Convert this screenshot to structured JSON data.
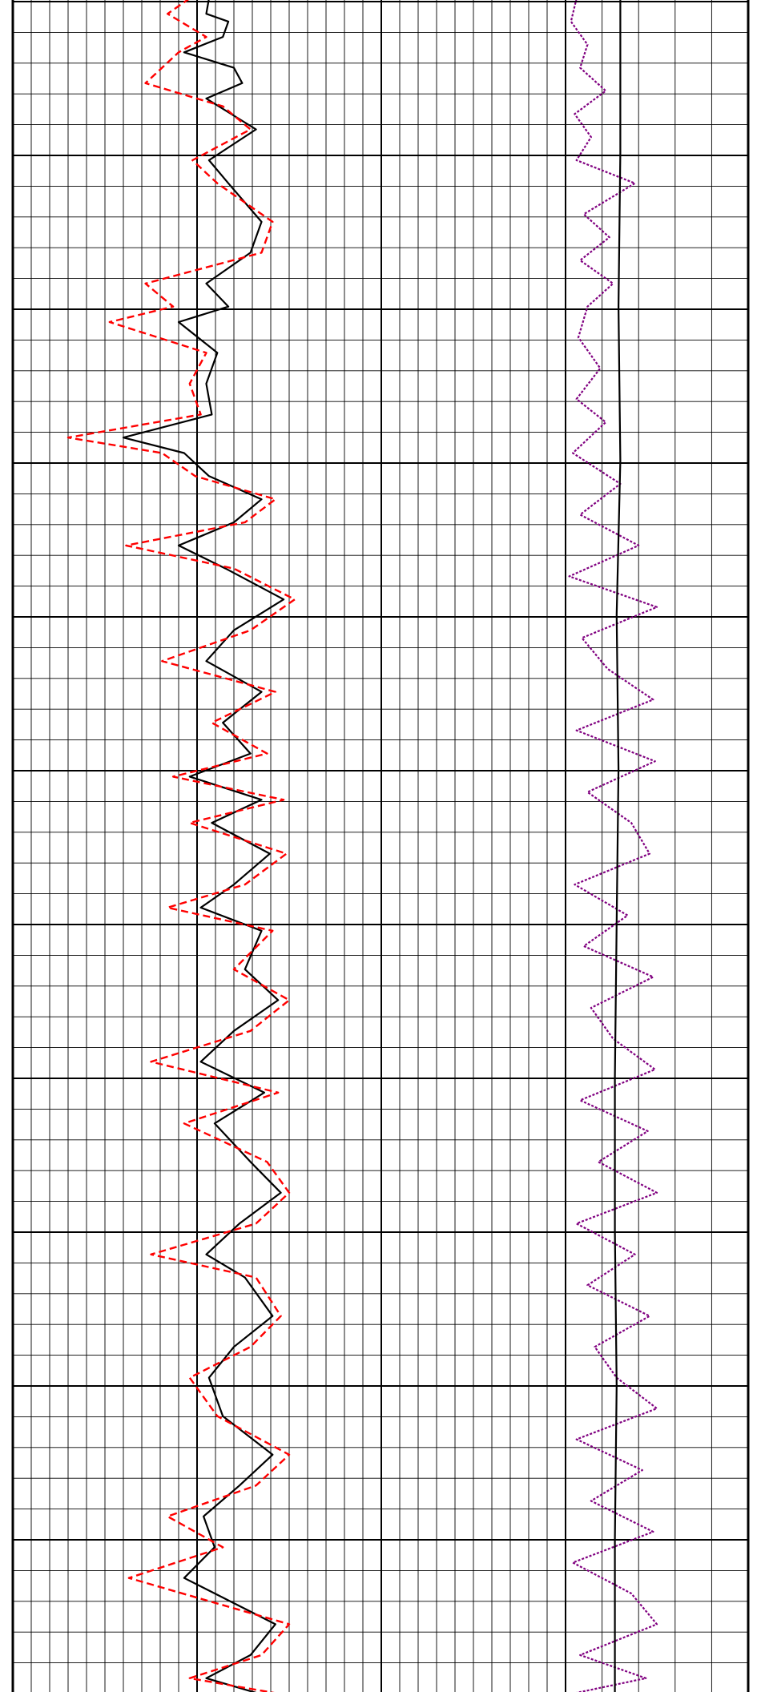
{
  "chart_data": {
    "type": "line",
    "title": "",
    "xlabel": "",
    "ylabel": "",
    "grid": true,
    "legend": "none",
    "tracks": [
      {
        "name": "track-1",
        "x_range": [
          0,
          20
        ],
        "y_range": [
          0,
          11
        ],
        "series": [
          {
            "color": "#000000",
            "style": "solid",
            "points": [
              [
                7.1,
                0.0
              ],
              [
                7.0,
                0.1
              ],
              [
                7.8,
                0.15
              ],
              [
                7.6,
                0.25
              ],
              [
                6.2,
                0.35
              ],
              [
                8.0,
                0.45
              ],
              [
                8.3,
                0.55
              ],
              [
                7.0,
                0.65
              ],
              [
                8.8,
                0.85
              ],
              [
                7.1,
                1.05
              ],
              [
                7.8,
                1.2
              ],
              [
                9.0,
                1.45
              ],
              [
                8.6,
                1.65
              ],
              [
                7.0,
                1.85
              ],
              [
                7.8,
                2.0
              ],
              [
                6.0,
                2.1
              ],
              [
                7.4,
                2.3
              ],
              [
                7.0,
                2.5
              ],
              [
                7.2,
                2.7
              ],
              [
                4.0,
                2.85
              ],
              [
                6.2,
                2.95
              ],
              [
                7.1,
                3.1
              ],
              [
                9.0,
                3.25
              ],
              [
                8.0,
                3.4
              ],
              [
                6.0,
                3.55
              ],
              [
                7.7,
                3.7
              ],
              [
                9.8,
                3.9
              ],
              [
                8.0,
                4.1
              ],
              [
                7.0,
                4.3
              ],
              [
                9.0,
                4.5
              ],
              [
                7.6,
                4.7
              ],
              [
                8.6,
                4.9
              ],
              [
                6.4,
                5.05
              ],
              [
                9.0,
                5.2
              ],
              [
                7.2,
                5.35
              ],
              [
                9.3,
                5.55
              ],
              [
                8.0,
                5.75
              ],
              [
                6.8,
                5.9
              ],
              [
                9.0,
                6.05
              ],
              [
                8.4,
                6.3
              ],
              [
                9.6,
                6.5
              ],
              [
                8.0,
                6.7
              ],
              [
                6.8,
                6.9
              ],
              [
                9.1,
                7.1
              ],
              [
                7.3,
                7.3
              ],
              [
                8.6,
                7.55
              ],
              [
                9.7,
                7.75
              ],
              [
                8.2,
                7.95
              ],
              [
                7.0,
                8.15
              ],
              [
                8.4,
                8.3
              ],
              [
                9.4,
                8.55
              ],
              [
                8.0,
                8.75
              ],
              [
                7.1,
                8.95
              ],
              [
                7.6,
                9.2
              ],
              [
                9.4,
                9.45
              ],
              [
                8.2,
                9.65
              ],
              [
                6.9,
                9.85
              ],
              [
                7.3,
                10.05
              ],
              [
                6.2,
                10.25
              ],
              [
                9.5,
                10.55
              ],
              [
                8.6,
                10.75
              ],
              [
                7.0,
                10.9
              ],
              [
                8.9,
                11.0
              ]
            ]
          },
          {
            "color": "#ff0000",
            "style": "dashed",
            "points": [
              [
                6.4,
                0.0
              ],
              [
                5.6,
                0.1
              ],
              [
                7.0,
                0.25
              ],
              [
                6.0,
                0.35
              ],
              [
                4.8,
                0.55
              ],
              [
                7.6,
                0.7
              ],
              [
                8.6,
                0.85
              ],
              [
                6.5,
                1.05
              ],
              [
                7.4,
                1.2
              ],
              [
                9.4,
                1.45
              ],
              [
                9.0,
                1.65
              ],
              [
                4.8,
                1.85
              ],
              [
                5.8,
                2.0
              ],
              [
                3.5,
                2.1
              ],
              [
                7.0,
                2.3
              ],
              [
                6.4,
                2.5
              ],
              [
                6.8,
                2.7
              ],
              [
                2.0,
                2.85
              ],
              [
                5.4,
                2.95
              ],
              [
                6.6,
                3.1
              ],
              [
                9.5,
                3.25
              ],
              [
                8.4,
                3.4
              ],
              [
                4.1,
                3.55
              ],
              [
                8.0,
                3.7
              ],
              [
                10.2,
                3.9
              ],
              [
                8.6,
                4.1
              ],
              [
                5.4,
                4.3
              ],
              [
                9.5,
                4.5
              ],
              [
                7.2,
                4.7
              ],
              [
                9.2,
                4.9
              ],
              [
                5.8,
                5.05
              ],
              [
                9.8,
                5.2
              ],
              [
                6.4,
                5.35
              ],
              [
                9.9,
                5.55
              ],
              [
                8.4,
                5.75
              ],
              [
                5.6,
                5.9
              ],
              [
                9.4,
                6.05
              ],
              [
                8.0,
                6.3
              ],
              [
                10.0,
                6.5
              ],
              [
                8.6,
                6.7
              ],
              [
                5.0,
                6.9
              ],
              [
                9.6,
                7.1
              ],
              [
                6.2,
                7.3
              ],
              [
                9.2,
                7.55
              ],
              [
                10.0,
                7.75
              ],
              [
                8.8,
                7.95
              ],
              [
                5.0,
                8.15
              ],
              [
                8.8,
                8.3
              ],
              [
                9.7,
                8.55
              ],
              [
                8.6,
                8.75
              ],
              [
                6.4,
                8.95
              ],
              [
                7.4,
                9.2
              ],
              [
                10.0,
                9.45
              ],
              [
                8.8,
                9.65
              ],
              [
                5.6,
                9.85
              ],
              [
                7.6,
                10.05
              ],
              [
                4.2,
                10.25
              ],
              [
                10.0,
                10.55
              ],
              [
                9.0,
                10.75
              ],
              [
                6.4,
                10.9
              ],
              [
                9.6,
                11.0
              ]
            ]
          }
        ]
      },
      {
        "name": "track-2",
        "x_range": [
          0,
          10
        ],
        "y_range": [
          0,
          11
        ],
        "series": [
          {
            "color": "#800080",
            "style": "dotted",
            "points": [
              [
                0.6,
                0.0
              ],
              [
                0.3,
                0.15
              ],
              [
                1.2,
                0.3
              ],
              [
                0.8,
                0.45
              ],
              [
                2.2,
                0.6
              ],
              [
                0.5,
                0.75
              ],
              [
                1.4,
                0.9
              ],
              [
                0.6,
                1.05
              ],
              [
                3.8,
                1.2
              ],
              [
                1.0,
                1.4
              ],
              [
                2.4,
                1.55
              ],
              [
                0.8,
                1.7
              ],
              [
                2.6,
                1.85
              ],
              [
                1.2,
                2.0
              ],
              [
                0.7,
                2.2
              ],
              [
                1.9,
                2.4
              ],
              [
                0.6,
                2.6
              ],
              [
                2.2,
                2.75
              ],
              [
                0.4,
                2.95
              ],
              [
                3.0,
                3.15
              ],
              [
                0.8,
                3.35
              ],
              [
                4.0,
                3.55
              ],
              [
                0.2,
                3.75
              ],
              [
                5.0,
                3.95
              ],
              [
                0.9,
                4.15
              ],
              [
                2.3,
                4.35
              ],
              [
                4.8,
                4.55
              ],
              [
                0.6,
                4.75
              ],
              [
                4.9,
                4.95
              ],
              [
                1.2,
                5.15
              ],
              [
                3.6,
                5.35
              ],
              [
                4.6,
                5.55
              ],
              [
                0.5,
                5.75
              ],
              [
                3.4,
                5.95
              ],
              [
                1.0,
                6.15
              ],
              [
                4.8,
                6.35
              ],
              [
                1.4,
                6.55
              ],
              [
                2.6,
                6.75
              ],
              [
                4.9,
                6.95
              ],
              [
                0.8,
                7.15
              ],
              [
                4.5,
                7.35
              ],
              [
                1.8,
                7.55
              ],
              [
                5.0,
                7.75
              ],
              [
                0.6,
                7.95
              ],
              [
                3.8,
                8.15
              ],
              [
                1.2,
                8.35
              ],
              [
                4.6,
                8.55
              ],
              [
                1.6,
                8.75
              ],
              [
                2.8,
                8.95
              ],
              [
                5.0,
                9.15
              ],
              [
                0.6,
                9.35
              ],
              [
                4.2,
                9.55
              ],
              [
                1.4,
                9.75
              ],
              [
                4.8,
                9.95
              ],
              [
                0.4,
                10.15
              ],
              [
                3.6,
                10.35
              ],
              [
                5.0,
                10.55
              ],
              [
                0.8,
                10.75
              ],
              [
                4.4,
                10.9
              ],
              [
                0.4,
                11.0
              ]
            ]
          },
          {
            "color": "#000000",
            "style": "solid",
            "points": [
              [
                3.0,
                0.0
              ],
              [
                3.0,
                1.0
              ],
              [
                2.9,
                2.0
              ],
              [
                3.0,
                3.0
              ],
              [
                2.8,
                4.0
              ],
              [
                2.9,
                5.0
              ],
              [
                2.8,
                6.0
              ],
              [
                2.7,
                7.0
              ],
              [
                2.7,
                8.0
              ],
              [
                2.8,
                9.0
              ],
              [
                2.7,
                10.0
              ],
              [
                2.7,
                11.0
              ]
            ]
          }
        ]
      }
    ]
  }
}
